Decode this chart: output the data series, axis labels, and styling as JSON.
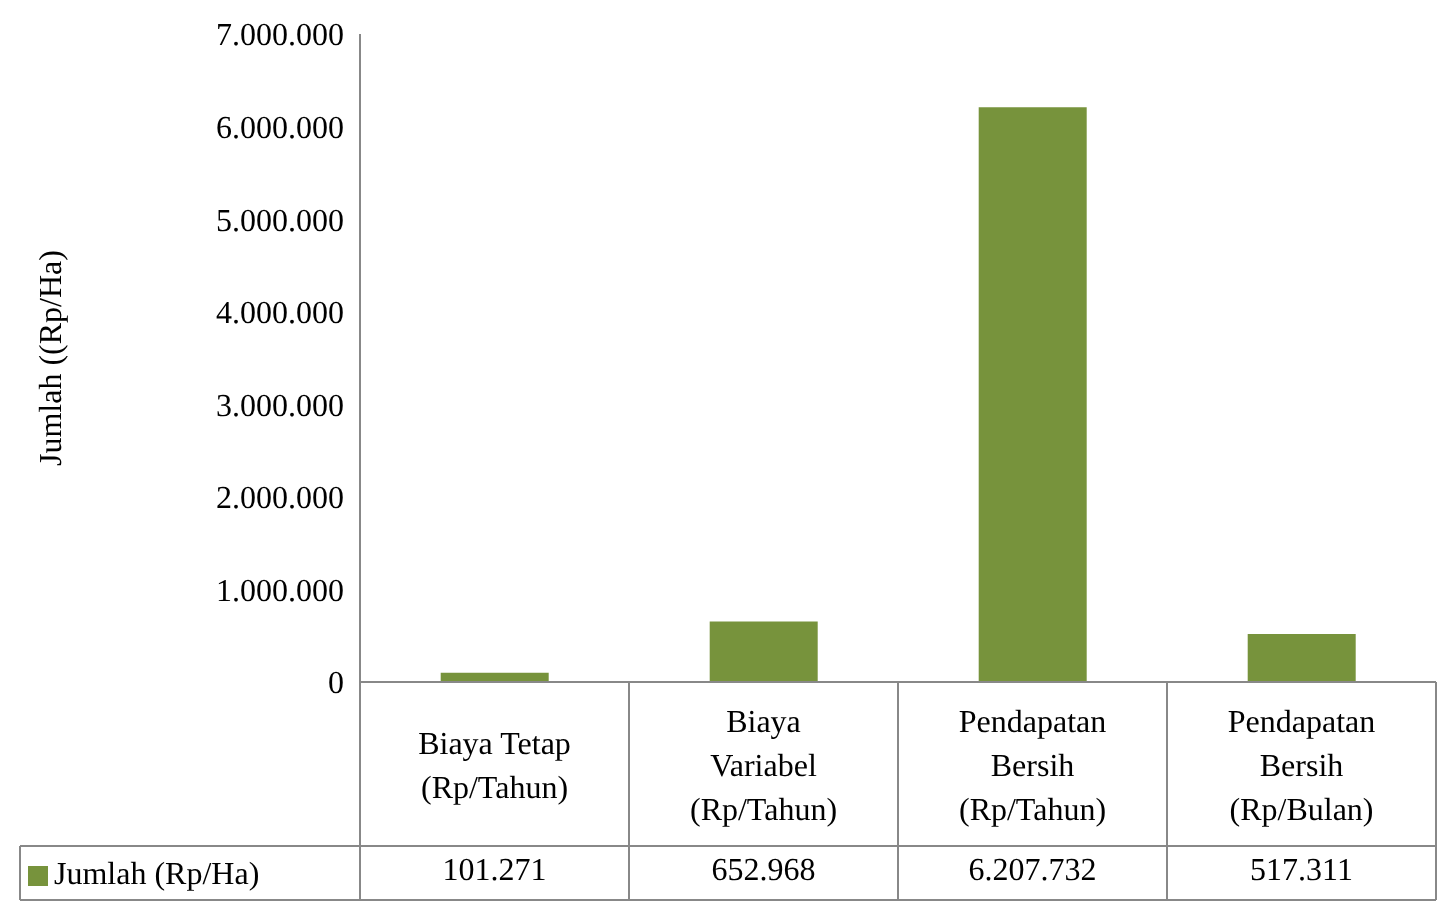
{
  "chart_data": {
    "type": "bar",
    "ylabel": "Jumlah ((Rp/Ha)",
    "categories": [
      "Biaya Tetap (Rp/Tahun)",
      "Biaya Variabel (Rp/Tahun)",
      "Pendapatan Bersih (Rp/Tahun)",
      "Pendapatan Bersih (Rp/Bulan)"
    ],
    "series": [
      {
        "name": "Jumlah (Rp/Ha)",
        "color": "#77933c",
        "values": [
          101271,
          652968,
          6207732,
          517311
        ],
        "value_labels": [
          "101.271",
          "652.968",
          "6.207.732",
          "517.311"
        ]
      }
    ],
    "ylim": [
      0,
      7000000
    ],
    "yticks": [
      0,
      {
        "value": 1000000,
        "label": "1.000.000"
      },
      {
        "value": 2000000,
        "label": "2.000.000"
      },
      {
        "value": 3000000,
        "label": "3.000.000"
      },
      {
        "value": 4000000,
        "label": "4.000.000"
      },
      {
        "value": 5000000,
        "label": "5.000.000"
      },
      {
        "value": 6000000,
        "label": "6.000.000"
      },
      {
        "value": 7000000,
        "label": "7.000.000"
      }
    ],
    "legend": "bottom",
    "grid": false
  }
}
